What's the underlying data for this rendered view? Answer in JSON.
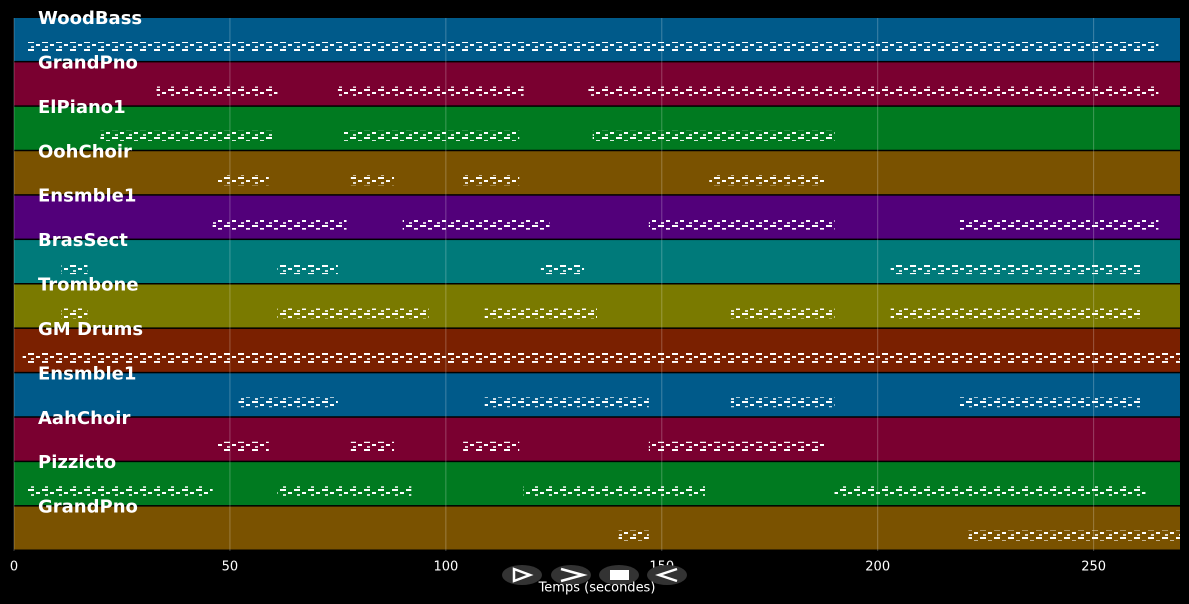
{
  "chart_data": {
    "type": "pianoroll",
    "x_label": "Temps (secondes)",
    "xlim": [
      0,
      270
    ],
    "xticks": [
      0,
      50,
      100,
      150,
      200,
      250
    ],
    "grid": true,
    "tracks": [
      {
        "name": "WoodBass",
        "color": "#005a8a",
        "segments": [
          [
            3,
            265
          ]
        ]
      },
      {
        "name": "GrandPno",
        "color": "#7a0030",
        "segments": [
          [
            33,
            61
          ],
          [
            75,
            118
          ],
          [
            133,
            265
          ]
        ]
      },
      {
        "name": "ElPiano1",
        "color": "#007a20",
        "segments": [
          [
            20,
            60
          ],
          [
            76,
            117
          ],
          [
            134,
            190
          ]
        ]
      },
      {
        "name": "OohChoir",
        "color": "#7a5200",
        "segments": [
          [
            47,
            59
          ],
          [
            78,
            88
          ],
          [
            104,
            117
          ],
          [
            161,
            188
          ]
        ]
      },
      {
        "name": "Ensmble1",
        "color": "#52007a",
        "segments": [
          [
            46,
            77
          ],
          [
            90,
            124
          ],
          [
            147,
            190
          ],
          [
            219,
            265
          ]
        ]
      },
      {
        "name": "BrasSect",
        "color": "#007a7a",
        "segments": [
          [
            11,
            17
          ],
          [
            61,
            75
          ],
          [
            122,
            132
          ],
          [
            203,
            261
          ]
        ]
      },
      {
        "name": "Trombone",
        "color": "#7a7a00",
        "segments": [
          [
            11,
            17
          ],
          [
            61,
            96
          ],
          [
            109,
            135
          ],
          [
            166,
            190
          ],
          [
            203,
            261
          ]
        ]
      },
      {
        "name": "GM Drums",
        "color": "#7a2000",
        "segments": [
          [
            2,
            270
          ]
        ]
      },
      {
        "name": "Ensmble1",
        "color": "#005a8a",
        "segments": [
          [
            52,
            75
          ],
          [
            109,
            147
          ],
          [
            166,
            190
          ],
          [
            219,
            261
          ]
        ]
      },
      {
        "name": "AahChoir",
        "color": "#7a0030",
        "segments": [
          [
            47,
            59
          ],
          [
            78,
            88
          ],
          [
            104,
            117
          ],
          [
            147,
            188
          ]
        ]
      },
      {
        "name": "Pizzicto",
        "color": "#007a20",
        "segments": [
          [
            3,
            46
          ],
          [
            61,
            92
          ],
          [
            118,
            160
          ],
          [
            190,
            262
          ]
        ]
      },
      {
        "name": "GrandPno",
        "color": "#7a5200",
        "segments": [
          [
            140,
            147
          ],
          [
            221,
            270
          ]
        ]
      }
    ]
  }
}
